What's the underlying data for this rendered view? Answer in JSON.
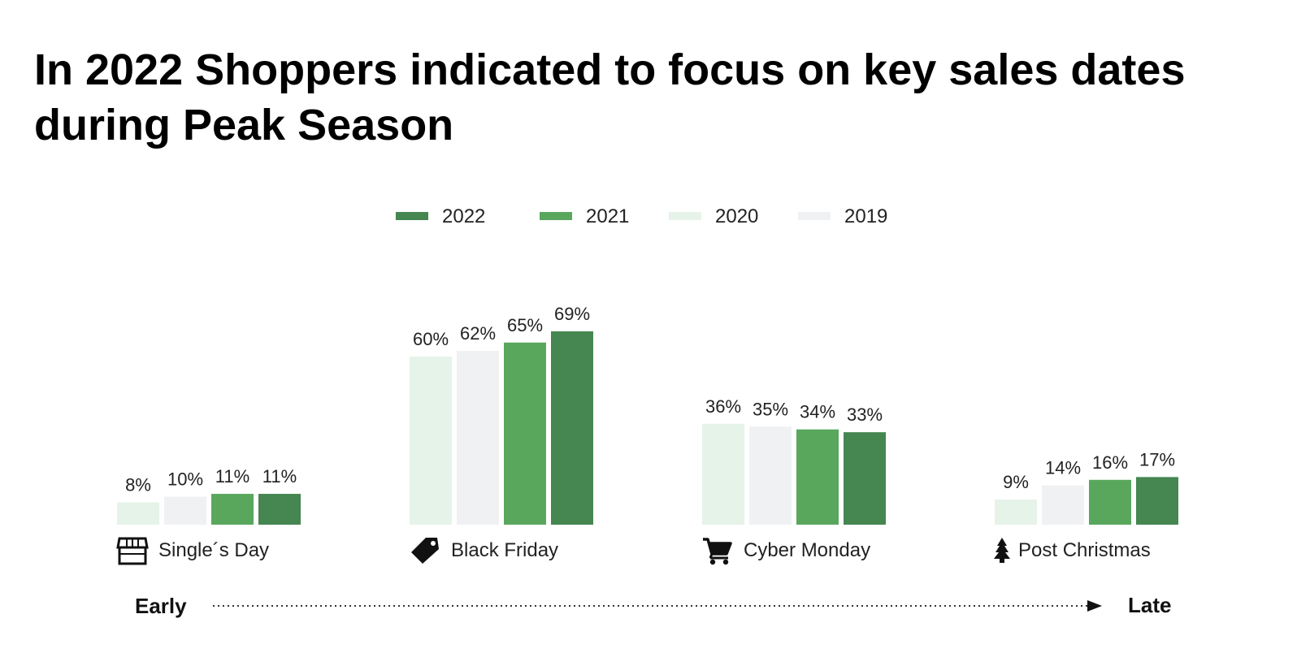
{
  "title": "In 2022 Shoppers indicated to focus on key sales dates during Peak Season",
  "colors": {
    "2022": "#458651",
    "2021": "#59a75d",
    "2020": "#e6f3e8",
    "2019": "#f0f1f3",
    "text": "#222222"
  },
  "chart_data": {
    "type": "bar",
    "title": "In 2022 Shoppers indicated to focus on key sales dates during Peak Season",
    "legend": [
      "2022",
      "2021",
      "2020",
      "2019"
    ],
    "legend_position": "top-center",
    "categories": [
      "Single´s Day",
      "Black Friday",
      "Cyber Monday",
      "Post Christmas"
    ],
    "category_icons": [
      "store-icon",
      "price-tag-icon",
      "shopping-cart-icon",
      "christmas-tree-icon"
    ],
    "bar_order": [
      "2020",
      "2019",
      "2021",
      "2022"
    ],
    "series": [
      {
        "name": "2020",
        "values": [
          8,
          60,
          36,
          9
        ]
      },
      {
        "name": "2019",
        "values": [
          10,
          62,
          35,
          14
        ]
      },
      {
        "name": "2021",
        "values": [
          11,
          65,
          34,
          16
        ]
      },
      {
        "name": "2022",
        "values": [
          11,
          69,
          33,
          17
        ]
      }
    ],
    "value_suffix": "%",
    "ylim": [
      0,
      70
    ],
    "xlabel": "",
    "ylabel": "",
    "grid": false
  },
  "timeline": {
    "start_label": "Early",
    "end_label": "Late"
  }
}
